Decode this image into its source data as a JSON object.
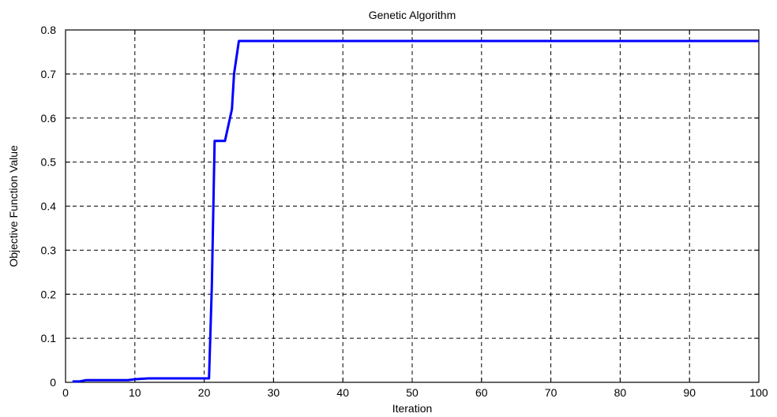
{
  "chart_data": {
    "type": "line",
    "title": "Genetic Algorithm",
    "xlabel": "Iteration",
    "ylabel": "Objective Function Value",
    "xlim": [
      0,
      100
    ],
    "ylim": [
      0,
      0.8
    ],
    "xticks": [
      "0",
      "10",
      "20",
      "30",
      "40",
      "50",
      "60",
      "70",
      "80",
      "90",
      "100"
    ],
    "yticks": [
      "0",
      "0.1",
      "0.2",
      "0.3",
      "0.4",
      "0.5",
      "0.6",
      "0.7",
      "0.8"
    ],
    "grid": true,
    "series": [
      {
        "color": "#0000ff",
        "x": [
          1,
          2,
          3,
          4,
          5,
          6,
          7,
          8,
          9,
          10,
          11,
          12,
          13,
          14,
          15,
          16,
          17,
          18,
          19,
          20,
          20.7,
          21.1,
          21.5,
          22,
          22.5,
          23,
          24,
          24.3,
          25,
          30,
          40,
          50,
          60,
          70,
          80,
          90,
          100
        ],
        "y": [
          0.002,
          0.002,
          0.005,
          0.005,
          0.005,
          0.005,
          0.005,
          0.005,
          0.005,
          0.007,
          0.008,
          0.009,
          0.009,
          0.009,
          0.009,
          0.009,
          0.009,
          0.009,
          0.009,
          0.009,
          0.009,
          0.22,
          0.548,
          0.548,
          0.548,
          0.548,
          0.62,
          0.7,
          0.775,
          0.775,
          0.775,
          0.775,
          0.775,
          0.775,
          0.775,
          0.775,
          0.775
        ]
      }
    ]
  }
}
